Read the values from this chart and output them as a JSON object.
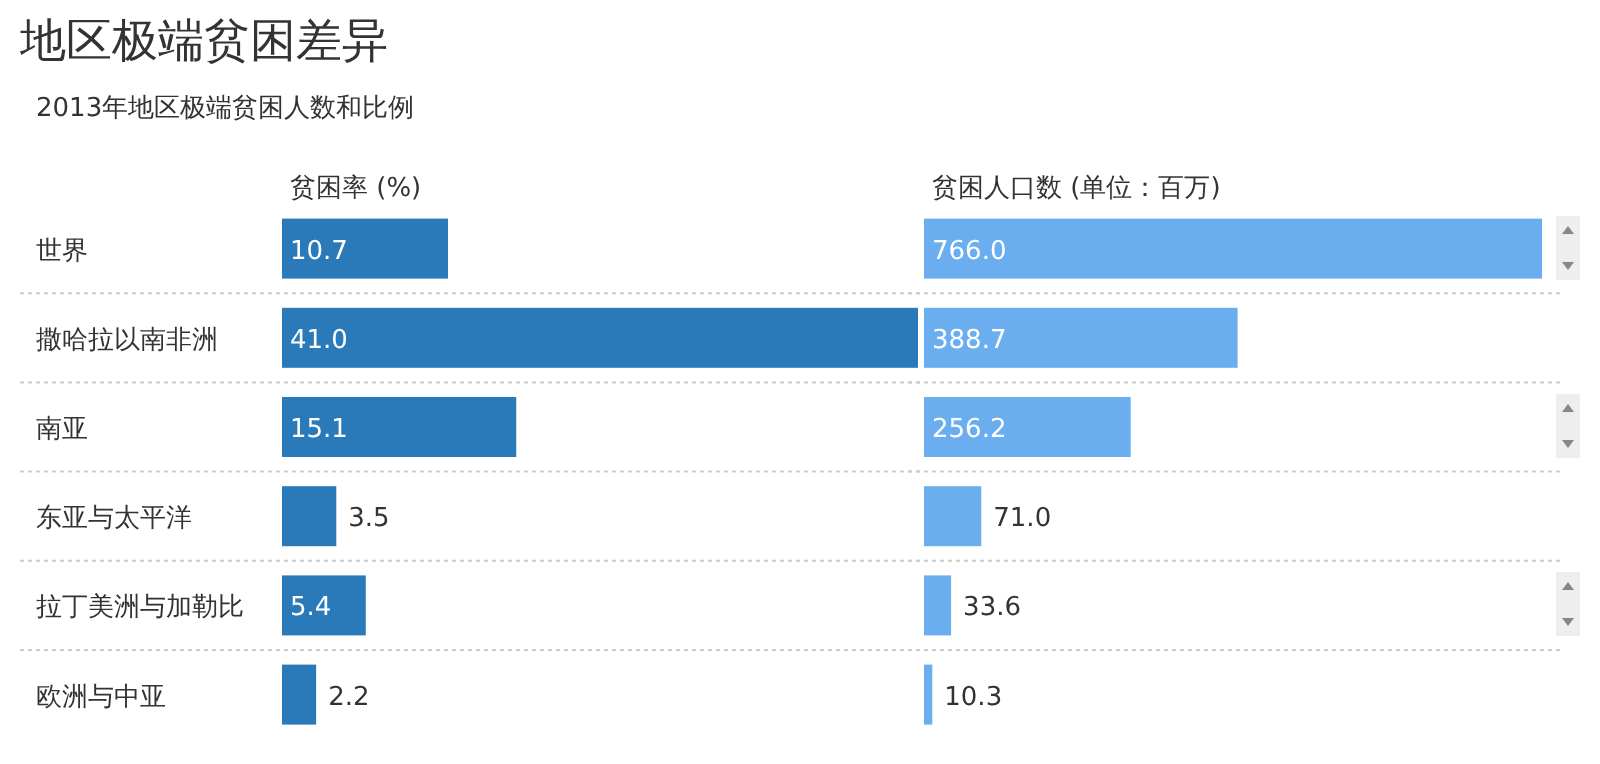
{
  "chart_data": [
    {
      "type": "bar",
      "orientation": "horizontal",
      "title": "地区极端贫困差异",
      "subtitle": "2013年地区极端贫困人数和比例",
      "xlabel": "贫困率 (%)",
      "categories": [
        "世界",
        "撒哈拉以南非洲",
        "南亚",
        "东亚与太平洋",
        "拉丁美洲与加勒比",
        "欧洲与中亚"
      ],
      "values": [
        10.7,
        41.0,
        15.1,
        3.5,
        5.4,
        2.2
      ],
      "value_labels": [
        "10.7",
        "41.0",
        "15.1",
        "3.5",
        "5.4",
        "2.2"
      ],
      "color": "#2a7aba",
      "grid": "y"
    },
    {
      "type": "bar",
      "orientation": "horizontal",
      "xlabel": "贫困人口数 (单位：百万)",
      "categories": [
        null,
        null,
        null,
        null,
        null,
        null
      ],
      "values": [
        766.0,
        388.7,
        256.2,
        71.0,
        33.6,
        10.3
      ],
      "value_labels": [
        "766.0",
        "388.7",
        "256.2",
        "71.0",
        "33.6",
        "10.3"
      ],
      "color": "#6aaef0",
      "grid": "y"
    }
  ]
}
